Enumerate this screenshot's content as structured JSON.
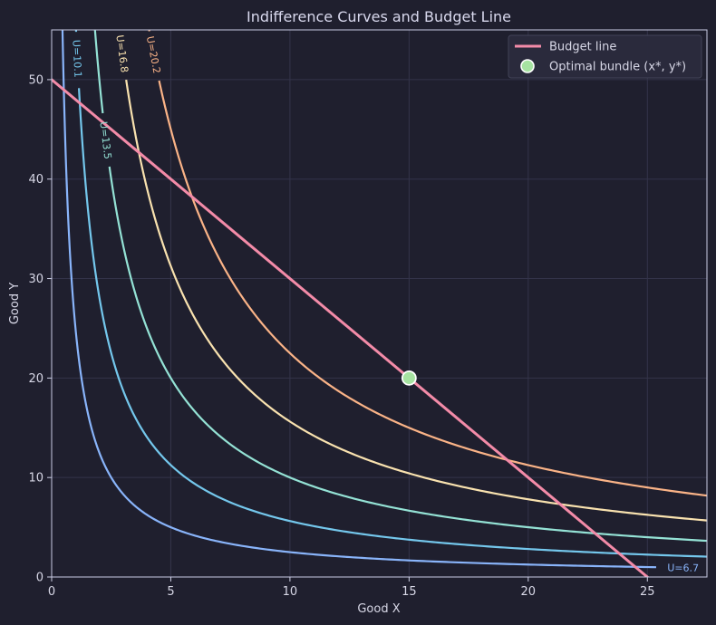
{
  "chart_data": {
    "type": "line",
    "title": "Indifference Curves and Budget Line",
    "xlabel": "Good X",
    "ylabel": "Good Y",
    "xlim": [
      0,
      27.5
    ],
    "ylim": [
      0,
      55
    ],
    "xticks": [
      0,
      5,
      10,
      15,
      20,
      25
    ],
    "yticks": [
      0,
      10,
      20,
      30,
      40,
      50
    ],
    "grid": true,
    "legend_position": "top-right",
    "budget_line": {
      "name": "Budget line",
      "color": "#f38ba8",
      "x": [
        0,
        25
      ],
      "y": [
        50,
        0
      ]
    },
    "optimal_bundle": {
      "name": "Optimal bundle (x*, y*)",
      "x": 15,
      "y": 20,
      "color": "#a6e3a1"
    },
    "indifference_curves": [
      {
        "label": "U=6.7",
        "xy_product": 25,
        "color": "#89b4fa"
      },
      {
        "label": "U=10.1",
        "xy_product": 56.25,
        "color": "#74c7ec"
      },
      {
        "label": "U=13.5",
        "xy_product": 100,
        "color": "#94e2d5"
      },
      {
        "label": "U=16.8",
        "xy_product": 156.25,
        "color": "#f9e2af"
      },
      {
        "label": "U=20.2",
        "xy_product": 225,
        "color": "#fab387"
      }
    ]
  }
}
